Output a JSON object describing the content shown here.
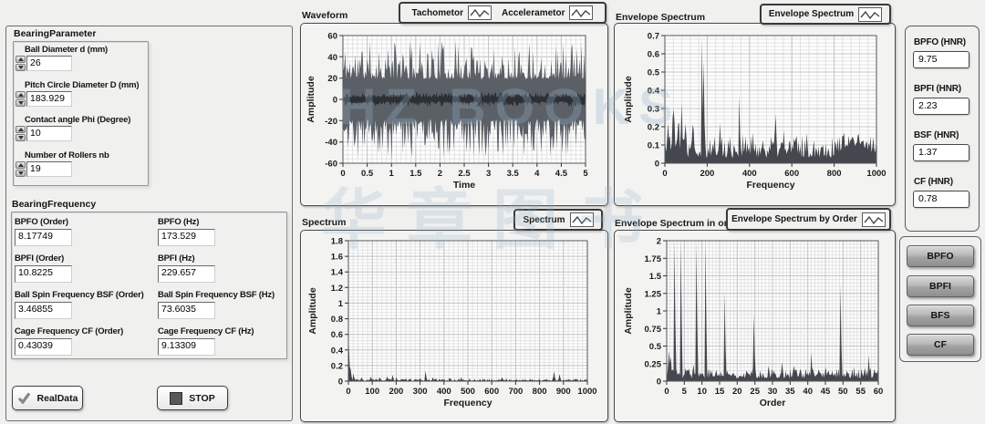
{
  "watermark": {
    "line1": "HZ BOOKS",
    "line2": "华章图书"
  },
  "bearing_parameter": {
    "title": "BearingParameter",
    "controls": [
      {
        "label": "Ball Diameter d (mm)",
        "value": "26"
      },
      {
        "label": "Pitch Circle Diameter D (mm)",
        "value": "183.929"
      },
      {
        "label": "Contact angle Phi (Degree)",
        "value": "10"
      },
      {
        "label": "Number of Rollers nb",
        "value": "19"
      }
    ]
  },
  "bearing_frequency": {
    "title": "BearingFrequency",
    "indicators": [
      {
        "label": "BPFO (Order)",
        "value": "8.17749"
      },
      {
        "label": "BPFO (Hz)",
        "value": "173.529"
      },
      {
        "label": "BPFI (Order)",
        "value": "10.8225"
      },
      {
        "label": "BPFI (Hz)",
        "value": "229.657"
      },
      {
        "label": "Ball Spin Frequency BSF (Order)",
        "value": "3.46855"
      },
      {
        "label": "Ball Spin Frequency BSF (Hz)",
        "value": "73.6035"
      },
      {
        "label": "Cage Frequency CF (Order)",
        "value": "0.43039"
      },
      {
        "label": "Cage Frequency CF (Hz)",
        "value": "9.13309"
      }
    ]
  },
  "buttons": {
    "real_data": "RealData",
    "stop": "STOP"
  },
  "legends": {
    "waveform": [
      {
        "label": "Tachometor"
      },
      {
        "label": "Accelerametor"
      }
    ],
    "envelope": {
      "label": "Envelope Spectrum"
    },
    "spectrum": {
      "label": "Spectrum"
    },
    "order": {
      "label": "Envelope Spectrum by Order"
    }
  },
  "hnr_panel": {
    "items": [
      {
        "label": "BPFO (HNR)",
        "value": "9.75"
      },
      {
        "label": "BPFI (HNR)",
        "value": "2.23"
      },
      {
        "label": "BSF (HNR)",
        "value": "1.37"
      },
      {
        "label": "CF (HNR)",
        "value": "0.78"
      }
    ]
  },
  "fault_buttons": [
    {
      "label": "BPFO"
    },
    {
      "label": "BPFI"
    },
    {
      "label": "BFS"
    },
    {
      "label": "CF"
    }
  ],
  "chart_data": [
    {
      "id": "waveform",
      "type": "line",
      "title": "Waveform",
      "xlabel": "Time",
      "ylabel": "Amplitude",
      "xlim": [
        0,
        5
      ],
      "ylim": [
        -60,
        60
      ],
      "xticks": [
        0,
        0.5,
        1,
        1.5,
        2,
        2.5,
        3,
        3.5,
        4,
        4.5,
        5
      ],
      "yticks": [
        -60,
        -40,
        -20,
        0,
        20,
        40,
        60
      ],
      "grid": true,
      "legend": [
        "Tachometor",
        "Accelerametor"
      ],
      "series": [
        {
          "name": "Accelerametor",
          "kind": "random-noise-band",
          "band": {
            "min": 19,
            "max": 56
          },
          "color": "#5b6067"
        },
        {
          "name": "Tachometor",
          "kind": "random-noise-band",
          "band": {
            "min": 2,
            "max": 7
          },
          "color": "#2c2f34"
        }
      ]
    },
    {
      "id": "envelope-spectrum",
      "type": "line",
      "title": "Envelope Spectrum",
      "xlabel": "Frequency",
      "ylabel": "Amplitude",
      "xlim": [
        0,
        1000
      ],
      "ylim": [
        0,
        0.7
      ],
      "xticks": [
        0,
        200,
        400,
        600,
        800,
        1000
      ],
      "yticks": [
        0,
        0.1,
        0.2,
        0.3,
        0.4,
        0.5,
        0.6,
        0.7
      ],
      "grid": true,
      "color": "#44484e",
      "noise_floor": [
        0.03,
        0.17
      ],
      "peaks": [
        {
          "x": 15,
          "y": 0.33,
          "w": 8
        },
        {
          "x": 40,
          "y": 0.36,
          "w": 8
        },
        {
          "x": 60,
          "y": 0.3,
          "w": 10
        },
        {
          "x": 78,
          "y": 0.34,
          "w": 6
        },
        {
          "x": 95,
          "y": 0.3,
          "w": 8
        },
        {
          "x": 130,
          "y": 0.22,
          "w": 12
        },
        {
          "x": 173,
          "y": 0.69
        },
        {
          "x": 181,
          "y": 0.56
        },
        {
          "x": 260,
          "y": 0.22
        },
        {
          "x": 347,
          "y": 0.37
        },
        {
          "x": 520,
          "y": 0.27
        },
        {
          "x": 560,
          "y": 0.18
        },
        {
          "x": 900,
          "y": 0.15,
          "w": 90
        }
      ]
    },
    {
      "id": "spectrum",
      "type": "line",
      "title": "Spectrum",
      "xlabel": "Frequency",
      "ylabel": "Amplitude",
      "xlim": [
        0,
        1000
      ],
      "ylim": [
        0,
        1.8
      ],
      "xticks": [
        0,
        100,
        200,
        300,
        400,
        500,
        600,
        700,
        800,
        900,
        1000
      ],
      "yticks": [
        0,
        0.2,
        0.4,
        0.6,
        0.8,
        1,
        1.2,
        1.4,
        1.6,
        1.8
      ],
      "grid": true,
      "color": "#3e4248",
      "noise_floor": [
        0.004,
        0.03
      ],
      "peaks": [
        {
          "x": 0,
          "y": 0.46
        },
        {
          "x": 6,
          "y": 0.15,
          "w": 4
        },
        {
          "x": 20,
          "y": 0.1
        },
        {
          "x": 55,
          "y": 0.05
        },
        {
          "x": 90,
          "y": 0.06
        },
        {
          "x": 130,
          "y": 0.05
        },
        {
          "x": 160,
          "y": 0.06
        },
        {
          "x": 185,
          "y": 0.08
        },
        {
          "x": 200,
          "y": 0.05
        },
        {
          "x": 320,
          "y": 0.13
        },
        {
          "x": 350,
          "y": 0.05
        },
        {
          "x": 420,
          "y": 0.04
        },
        {
          "x": 470,
          "y": 0.05
        },
        {
          "x": 640,
          "y": 0.05,
          "w": 6
        },
        {
          "x": 860,
          "y": 0.16,
          "w": 5
        },
        {
          "x": 880,
          "y": 0.09
        }
      ]
    },
    {
      "id": "envelope-order",
      "type": "line",
      "title": "Envelope Spectrum in order",
      "xlabel": "Order",
      "ylabel": "Amplitude",
      "xlim": [
        0,
        60
      ],
      "ylim": [
        0,
        2
      ],
      "xticks": [
        0,
        5,
        10,
        15,
        20,
        25,
        30,
        35,
        40,
        45,
        50,
        55,
        60
      ],
      "yticks": [
        0,
        0.25,
        0.5,
        0.75,
        1,
        1.25,
        1.5,
        1.75,
        2
      ],
      "grid": true,
      "color": "#44484e",
      "noise_floor": [
        0.04,
        0.19
      ],
      "peaks": [
        {
          "x": 0.5,
          "y": 0.45,
          "w": 0.4
        },
        {
          "x": 1,
          "y": 0.35
        },
        {
          "x": 2.1,
          "y": 2.1
        },
        {
          "x": 3.8,
          "y": 2.1
        },
        {
          "x": 6,
          "y": 0.23,
          "w": 0.8
        },
        {
          "x": 7.5,
          "y": 0.24
        },
        {
          "x": 8.2,
          "y": 2.1
        },
        {
          "x": 10.8,
          "y": 2.1
        },
        {
          "x": 16.35,
          "y": 1.27
        },
        {
          "x": 24.5,
          "y": 0.95
        },
        {
          "x": 28.6,
          "y": 0.22
        },
        {
          "x": 32.7,
          "y": 0.27
        },
        {
          "x": 36,
          "y": 0.22
        },
        {
          "x": 40.9,
          "y": 0.41
        },
        {
          "x": 45,
          "y": 0.2
        },
        {
          "x": 49.1,
          "y": 1.37
        },
        {
          "x": 53,
          "y": 0.2
        },
        {
          "x": 57.2,
          "y": 0.37
        }
      ]
    }
  ]
}
